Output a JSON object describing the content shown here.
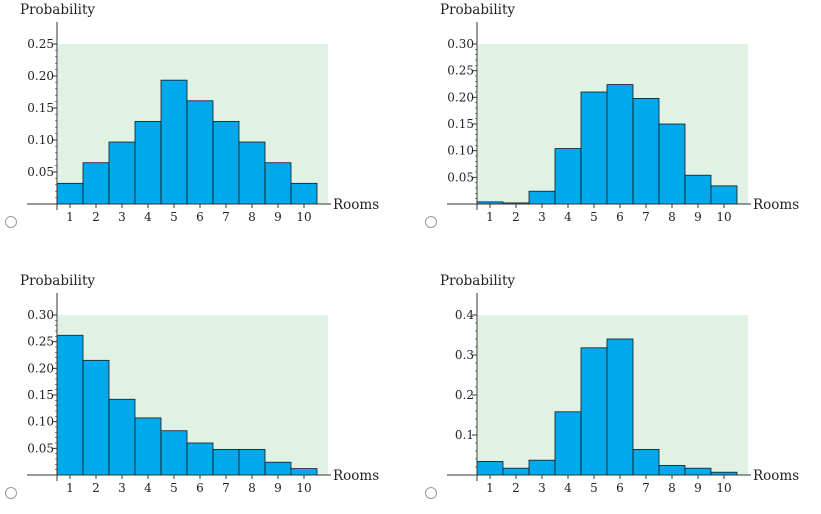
{
  "colors": {
    "bar": "#00a8ec",
    "bar_stroke": "#1a1a1a",
    "plot_bg": "#dff2e3",
    "axis": "#333333"
  },
  "chart_data": [
    {
      "type": "bar",
      "ylabel": "Probability",
      "xlabel": "Rooms",
      "categories": [
        "1",
        "2",
        "3",
        "4",
        "5",
        "6",
        "7",
        "8",
        "9",
        "10"
      ],
      "values": [
        0.0323,
        0.0645,
        0.0968,
        0.129,
        0.1935,
        0.1613,
        0.129,
        0.0968,
        0.0645,
        0.0323
      ],
      "ylim": [
        0,
        0.25
      ],
      "yticks": [
        0.05,
        0.1,
        0.15,
        0.2,
        0.25
      ],
      "ytick_labels": [
        "0.05",
        "0.10",
        "0.15",
        "0.20",
        "0.25"
      ]
    },
    {
      "type": "bar",
      "ylabel": "Probability",
      "xlabel": "Rooms",
      "categories": [
        "1",
        "2",
        "3",
        "4",
        "5",
        "6",
        "7",
        "8",
        "9",
        "10"
      ],
      "values": [
        0.004,
        0.002,
        0.024,
        0.104,
        0.21,
        0.224,
        0.198,
        0.15,
        0.054,
        0.034
      ],
      "ylim": [
        0,
        0.3
      ],
      "yticks": [
        0.05,
        0.1,
        0.15,
        0.2,
        0.25,
        0.3
      ],
      "ytick_labels": [
        "0.05",
        "0.10",
        "0.15",
        "0.20",
        "0.25",
        "0.30"
      ]
    },
    {
      "type": "bar",
      "ylabel": "Probability",
      "xlabel": "Rooms",
      "categories": [
        "1",
        "2",
        "3",
        "4",
        "5",
        "6",
        "7",
        "8",
        "9",
        "10"
      ],
      "values": [
        0.262,
        0.215,
        0.142,
        0.107,
        0.083,
        0.06,
        0.048,
        0.048,
        0.024,
        0.012
      ],
      "ylim": [
        0,
        0.3
      ],
      "yticks": [
        0.05,
        0.1,
        0.15,
        0.2,
        0.25,
        0.3
      ],
      "ytick_labels": [
        "0.05",
        "0.10",
        "0.15",
        "0.20",
        "0.25",
        "0.30"
      ]
    },
    {
      "type": "bar",
      "ylabel": "Probability",
      "xlabel": "Rooms",
      "categories": [
        "1",
        "2",
        "3",
        "4",
        "5",
        "6",
        "7",
        "8",
        "9",
        "10"
      ],
      "values": [
        0.034,
        0.017,
        0.037,
        0.158,
        0.318,
        0.34,
        0.064,
        0.024,
        0.017,
        0.007
      ],
      "ylim": [
        0,
        0.4
      ],
      "yticks": [
        0.1,
        0.2,
        0.3,
        0.4
      ],
      "ytick_labels": [
        "0.1",
        "0.2",
        "0.3",
        "0.4"
      ]
    }
  ]
}
